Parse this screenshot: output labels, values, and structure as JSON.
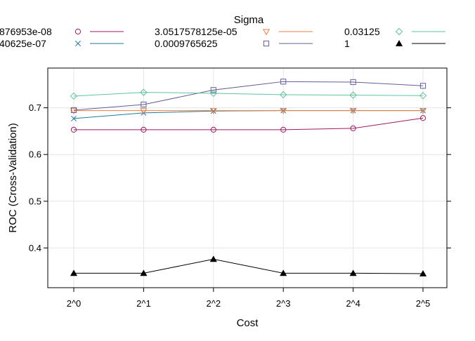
{
  "chart_data": {
    "type": "line",
    "title": "",
    "xlabel": "Cost",
    "ylabel": "ROC (Cross-Validation)",
    "x": [
      "2^0",
      "2^1",
      "2^2",
      "2^3",
      "2^4",
      "2^5"
    ],
    "ylim": [
      0.315,
      0.785
    ],
    "yticks": [
      0.4,
      0.5,
      0.6,
      0.7
    ],
    "ytick_labels": [
      "0.4",
      "0.5",
      "0.6",
      "0.7"
    ],
    "grid": true,
    "legend": {
      "title": "Sigma",
      "placement": "top",
      "columns": 3
    },
    "series": [
      {
        "name": "876953e-08",
        "color": "#a0185e",
        "marker": "circle",
        "values": [
          0.653,
          0.653,
          0.653,
          0.653,
          0.656,
          0.678
        ]
      },
      {
        "name": "40625e-07",
        "color": "#1f7a9e",
        "marker": "cross",
        "values": [
          0.677,
          0.689,
          0.693,
          0.694,
          0.694,
          0.694
        ]
      },
      {
        "name": "3.0517578125e-05",
        "color": "#f07c3c",
        "marker": "triangle-down",
        "values": [
          0.694,
          0.694,
          0.694,
          0.694,
          0.694,
          0.694
        ]
      },
      {
        "name": "0.0009765625",
        "color": "#625e9a",
        "marker": "square",
        "values": [
          0.695,
          0.707,
          0.738,
          0.756,
          0.755,
          0.747
        ]
      },
      {
        "name": "0.03125",
        "color": "#5fc49c",
        "marker": "diamond",
        "values": [
          0.725,
          0.733,
          0.731,
          0.728,
          0.727,
          0.726
        ]
      },
      {
        "name": "1",
        "color": "#000000",
        "marker": "triangle-filled",
        "values": [
          0.346,
          0.346,
          0.376,
          0.346,
          0.346,
          0.345
        ]
      }
    ]
  }
}
